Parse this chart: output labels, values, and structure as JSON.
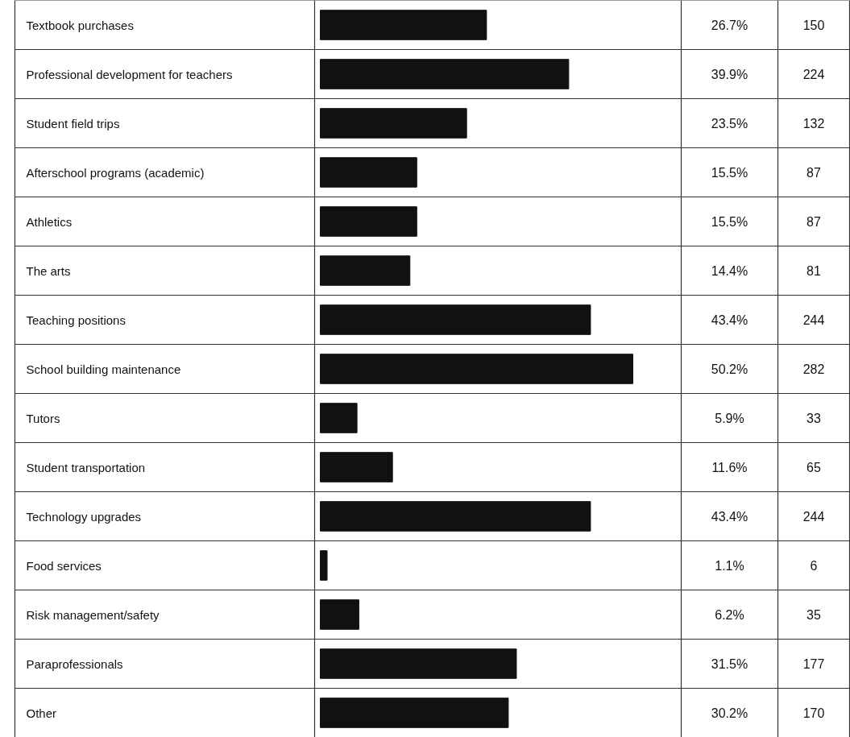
{
  "chart_data": {
    "type": "bar",
    "orientation": "horizontal",
    "categories": [
      "Textbook purchases",
      "Professional development for teachers",
      "Student field trips",
      "Afterschool programs (academic)",
      "Athletics",
      "The arts",
      "Teaching positions",
      "School building maintenance",
      "Tutors",
      "Student transportation",
      "Technology upgrades",
      "Food services",
      "Risk management/safety",
      "Paraprofessionals",
      "Other"
    ],
    "values": [
      26.7,
      39.9,
      23.5,
      15.5,
      15.5,
      14.4,
      43.4,
      50.2,
      5.9,
      11.6,
      43.4,
      1.1,
      6.2,
      31.5,
      30.2
    ],
    "color": "#111111",
    "value_labels": [
      "26.7%",
      "39.9%",
      "23.5%",
      "15.5%",
      "15.5%",
      "14.4%",
      "43.4%",
      "50.2%",
      "5.9%",
      "11.6%",
      "43.4%",
      "1.1%",
      "6.2%",
      "31.5%",
      "30.2%"
    ],
    "annotations": [
      "150",
      "224",
      "132",
      "87",
      "87",
      "81",
      "244",
      "282",
      "33",
      "65",
      "244",
      "6",
      "35",
      "177",
      "170"
    ],
    "grid": true
  }
}
